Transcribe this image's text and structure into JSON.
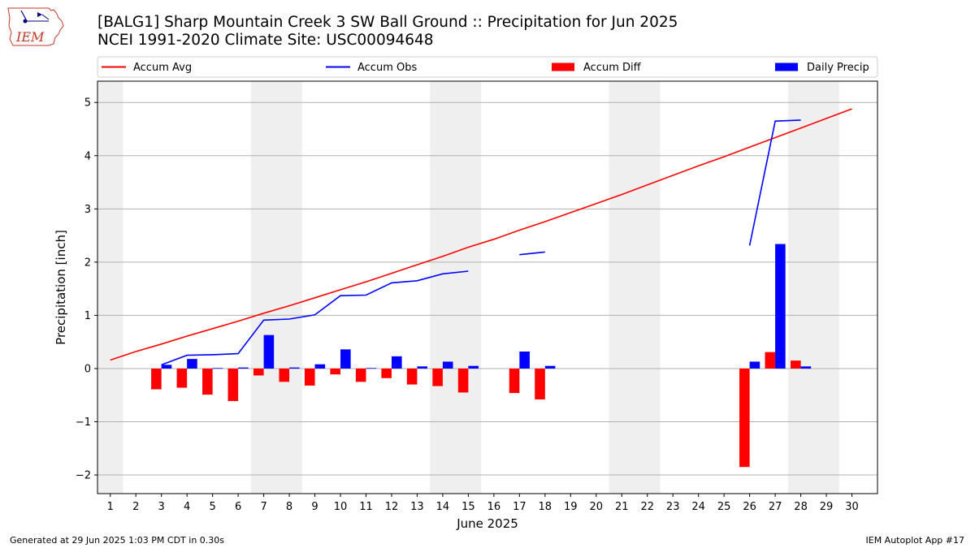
{
  "header": {
    "title_line1": "[BALG1] Sharp Mountain Creek 3 SW Ball Ground :: Precipitation for Jun 2025",
    "title_line2": "NCEI 1991-2020 Climate Site: USC00094648"
  },
  "logo": {
    "text": "IEM",
    "icon": "iowa-map-weather-icon"
  },
  "footer": {
    "generated": "Generated at 29 Jun 2025 1:03 PM CDT in 0.30s",
    "app": "IEM Autoplot App #17"
  },
  "chart_data": {
    "type": "bar",
    "xlabel": "June 2025",
    "ylabel": "Precipitation [inch]",
    "xlim": [
      0.5,
      31.0
    ],
    "ylim": [
      -2.35,
      5.4
    ],
    "yticks": [
      -2,
      -1,
      0,
      1,
      2,
      3,
      4,
      5
    ],
    "ytick_labels": [
      "−2",
      "−1",
      "0",
      "1",
      "2",
      "3",
      "4",
      "5"
    ],
    "xticks": [
      1,
      2,
      3,
      4,
      5,
      6,
      7,
      8,
      9,
      10,
      11,
      12,
      13,
      14,
      15,
      16,
      17,
      18,
      19,
      20,
      21,
      22,
      23,
      24,
      25,
      26,
      27,
      28,
      29,
      30
    ],
    "grid": "horizontal",
    "weekend_shading": [
      [
        0.5,
        1.5
      ],
      [
        6.5,
        8.5
      ],
      [
        13.5,
        15.5
      ],
      [
        20.5,
        22.5
      ],
      [
        27.5,
        29.5
      ]
    ],
    "days": [
      1,
      2,
      3,
      4,
      5,
      6,
      7,
      8,
      9,
      10,
      11,
      12,
      13,
      14,
      15,
      16,
      17,
      18,
      19,
      20,
      21,
      22,
      23,
      24,
      25,
      26,
      27,
      28,
      29,
      30
    ],
    "legend": {
      "placement": "top",
      "entries": [
        {
          "label": "Accum Avg",
          "kind": "line",
          "color": "#ff0000"
        },
        {
          "label": "Accum Obs",
          "kind": "line",
          "color": "#0000ff"
        },
        {
          "label": "Accum Diff",
          "kind": "bar",
          "color": "#ff0000"
        },
        {
          "label": "Daily Precip",
          "kind": "bar",
          "color": "#0000ff"
        }
      ]
    },
    "series": [
      {
        "name": "Accum Avg",
        "type": "line",
        "color": "#ff0000",
        "values": [
          0.16,
          0.32,
          0.46,
          0.61,
          0.75,
          0.89,
          1.04,
          1.18,
          1.33,
          1.48,
          1.63,
          1.79,
          1.95,
          2.11,
          2.28,
          2.43,
          2.6,
          2.76,
          2.93,
          3.1,
          3.27,
          3.45,
          3.63,
          3.81,
          3.98,
          4.16,
          4.34,
          4.52,
          4.7,
          4.88
        ]
      },
      {
        "name": "Accum Obs",
        "type": "line",
        "color": "#0000ff",
        "values": [
          null,
          null,
          0.07,
          0.25,
          0.26,
          0.28,
          0.91,
          0.93,
          1.01,
          1.37,
          1.38,
          1.61,
          1.65,
          1.78,
          1.83,
          null,
          2.14,
          2.19,
          null,
          null,
          null,
          null,
          null,
          null,
          null,
          2.31,
          4.65,
          4.67,
          null,
          null
        ]
      },
      {
        "name": "Accum Diff",
        "type": "bar",
        "color": "#ff0000",
        "values": [
          null,
          null,
          -0.39,
          -0.36,
          -0.49,
          -0.61,
          -0.13,
          -0.25,
          -0.32,
          -0.11,
          -0.25,
          -0.18,
          -0.3,
          -0.33,
          -0.45,
          null,
          -0.46,
          -0.58,
          null,
          null,
          null,
          null,
          null,
          null,
          null,
          -1.85,
          0.31,
          0.15,
          null,
          null
        ]
      },
      {
        "name": "Daily Precip",
        "type": "bar",
        "color": "#0000ff",
        "values": [
          null,
          null,
          0.07,
          0.18,
          0.01,
          0.02,
          0.63,
          0.02,
          0.08,
          0.36,
          0.01,
          0.23,
          0.04,
          0.13,
          0.05,
          null,
          0.32,
          0.05,
          null,
          null,
          null,
          null,
          null,
          null,
          null,
          0.13,
          2.34,
          0.04,
          null,
          null
        ]
      }
    ]
  }
}
